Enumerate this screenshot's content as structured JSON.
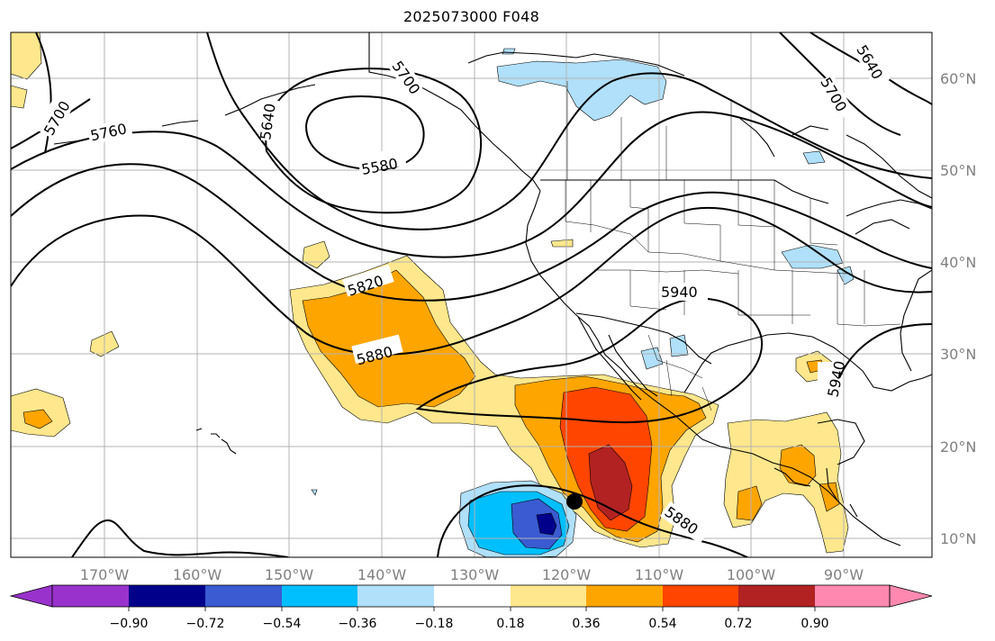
{
  "title": "2025073000 F048",
  "longitude_labels": [
    "170°W",
    "160°W",
    "150°W",
    "140°W",
    "130°W",
    "120°W",
    "110°W",
    "100°W",
    "90°W"
  ],
  "latitude_labels": [
    "60°N",
    "50°N",
    "40°N",
    "30°N",
    "20°N",
    "10°N"
  ],
  "contour_labels": [
    "5700",
    "5760",
    "5640",
    "5700",
    "5580",
    "5640",
    "5700",
    "5820",
    "5880",
    "5940",
    "5940",
    "5880"
  ],
  "colorbar": {
    "tick_labels": [
      "−0.90",
      "−0.72",
      "−0.54",
      "−0.36",
      "−0.18",
      "0.18",
      "0.36",
      "0.54",
      "0.72",
      "0.90"
    ],
    "colors": [
      "#9932cc",
      "#00008b",
      "#3a5bd1",
      "#00bfff",
      "#b0e0fa",
      "#ffffff",
      "#fee78c",
      "#ffa500",
      "#ff4500",
      "#b22222",
      "#ff88b0"
    ]
  },
  "marker": "storm-center-dot"
}
